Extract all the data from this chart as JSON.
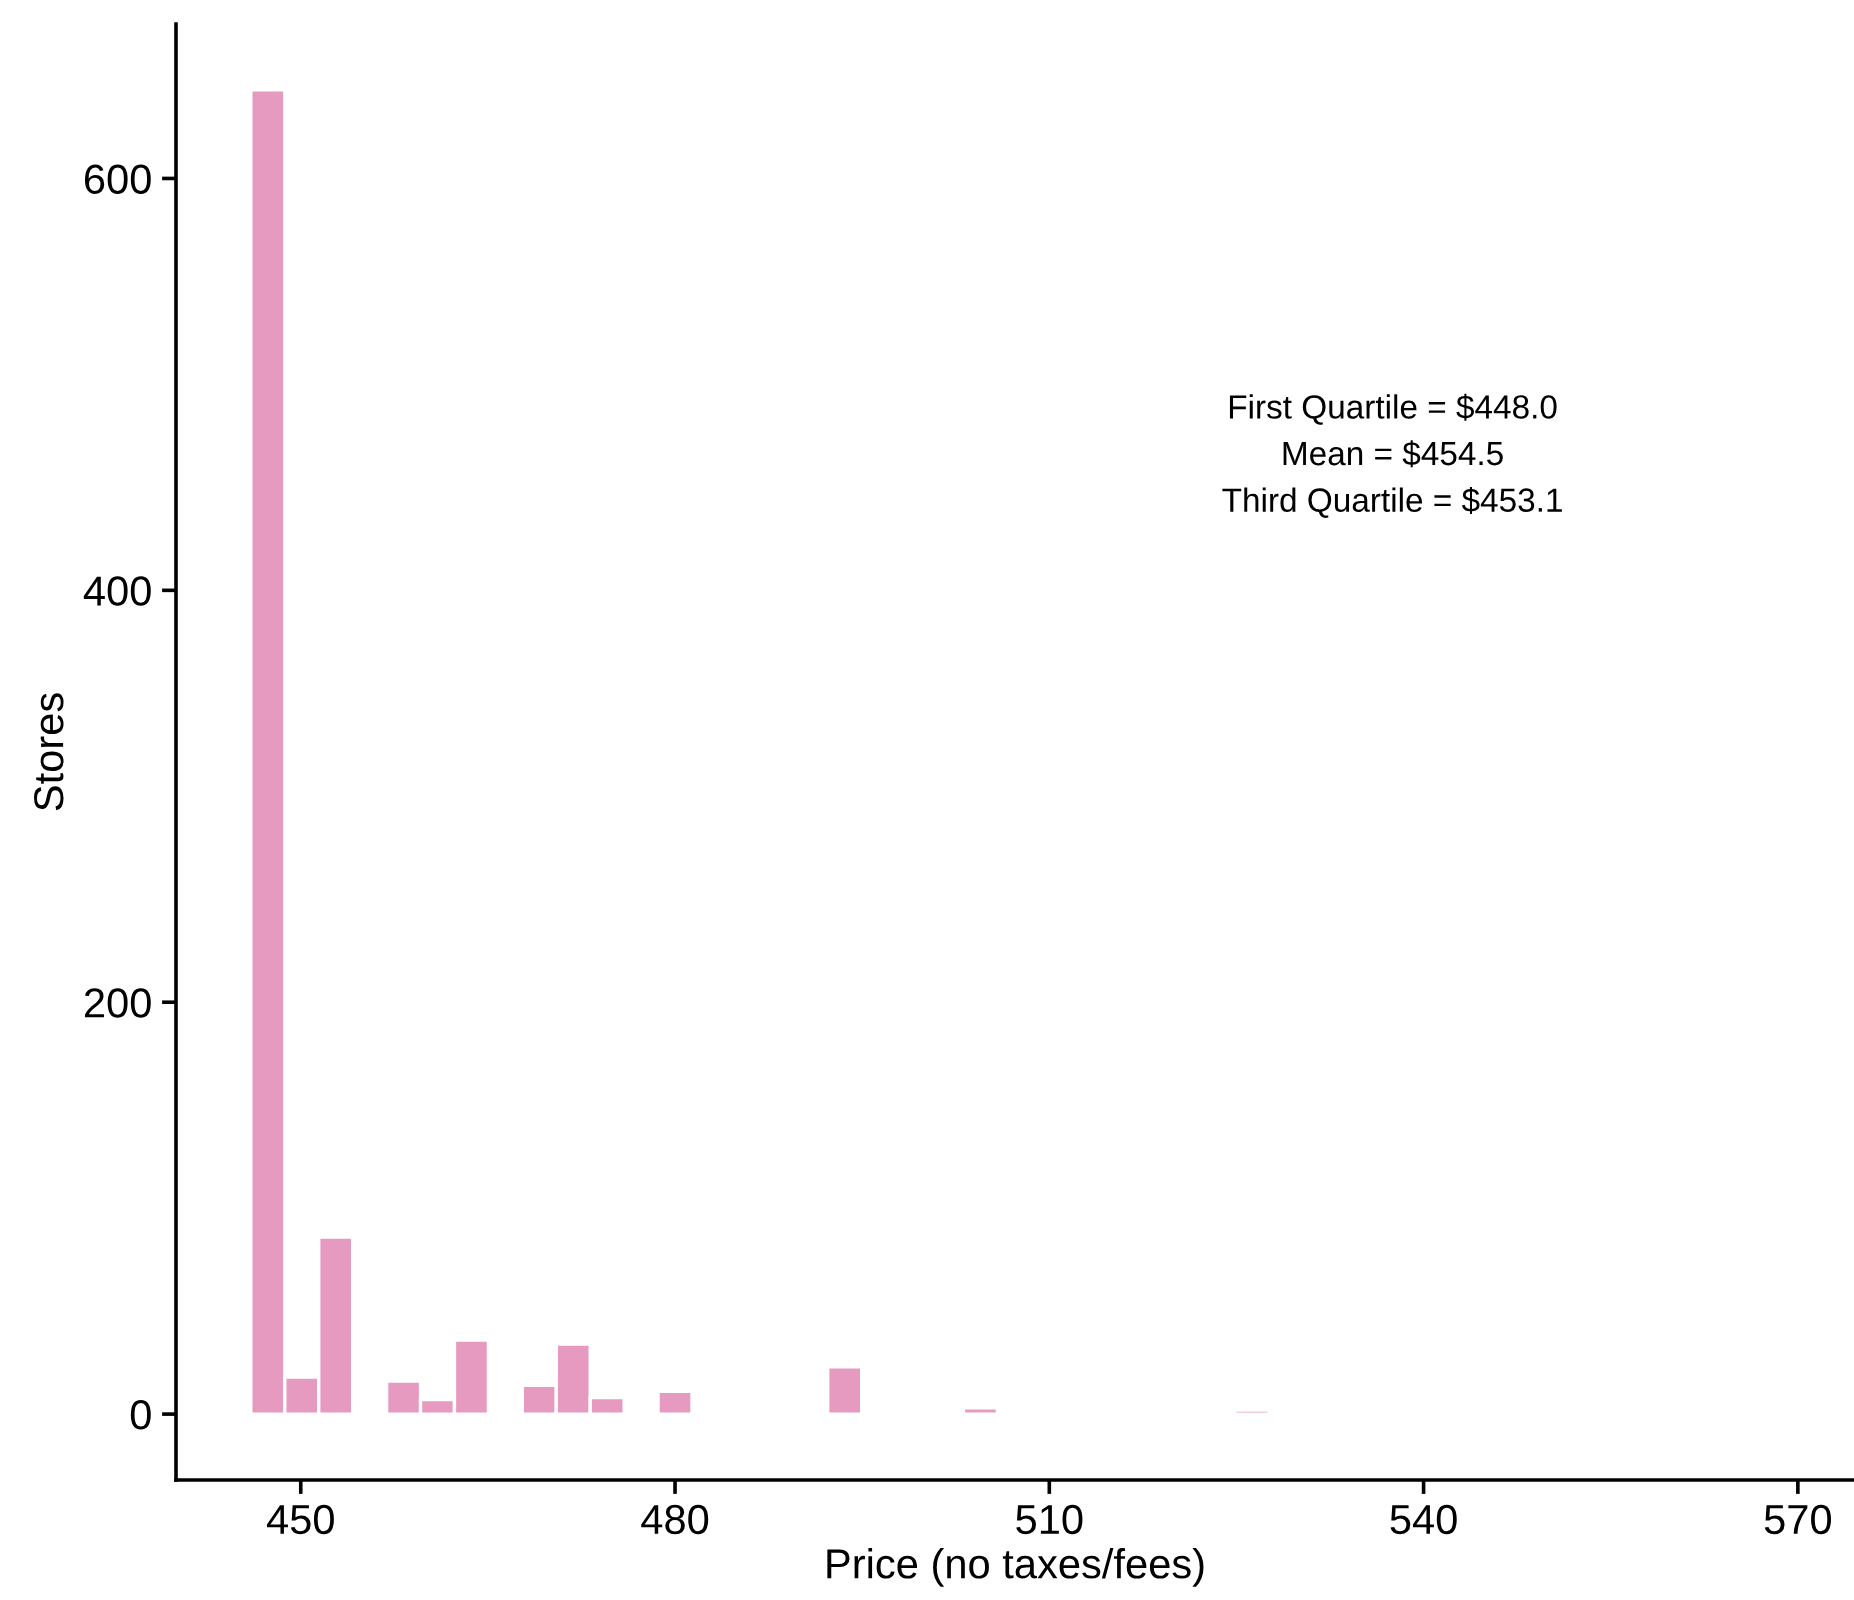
{
  "chart_data": {
    "type": "histogram",
    "xlabel": "Price (no taxes/fees)",
    "ylabel": "Stores",
    "bins": [
      446.0,
      448.72,
      451.44,
      454.16,
      456.88,
      459.6,
      462.32,
      465.04,
      467.76,
      470.48,
      473.2,
      475.92,
      478.64,
      481.36,
      484.08,
      486.8,
      489.52,
      492.24,
      494.96,
      497.68,
      500.4,
      503.12,
      505.84,
      508.56,
      511.28,
      514.0,
      516.72,
      519.44,
      522.16,
      524.88,
      527.6,
      530.32,
      533.04,
      535.76,
      538.48,
      541.2
    ],
    "values": [
      643,
      18,
      86,
      0,
      16,
      7,
      36,
      0,
      14,
      34,
      8,
      0,
      11,
      0,
      0,
      0,
      0,
      23,
      0,
      0,
      0,
      3,
      0,
      0,
      1,
      0,
      0,
      0,
      0,
      2,
      0,
      0,
      0,
      0,
      0
    ],
    "color": "#e69ac0",
    "xlim": [
      440,
      574.5
    ],
    "ylim": [
      -32,
      675
    ],
    "xticks": [
      450,
      480,
      510,
      540,
      570
    ],
    "yticks": [
      0,
      200,
      400,
      600
    ],
    "grid": false,
    "annotations": [
      "First Quartile = $448.0",
      "Mean = $454.5",
      "Third Quartile = $453.1"
    ]
  }
}
